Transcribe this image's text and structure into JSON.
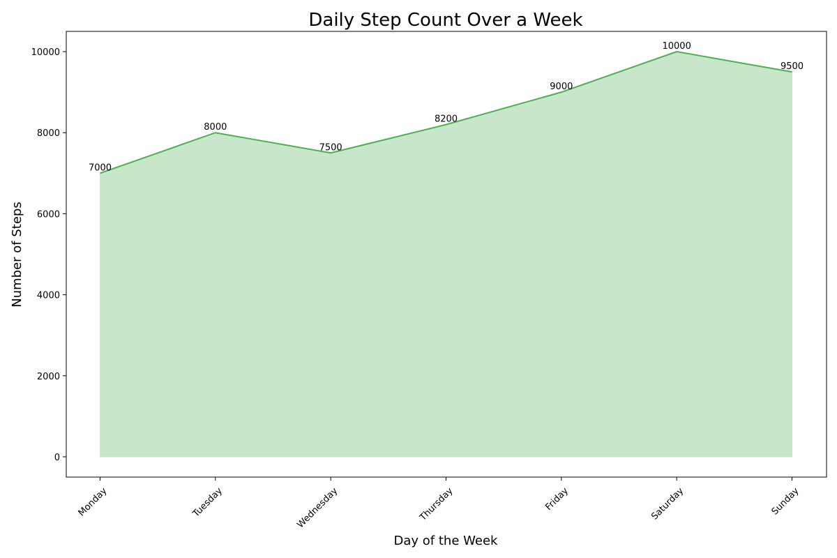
{
  "chart_data": {
    "type": "area",
    "title": "Daily Step Count Over a Week",
    "xlabel": "Day of the Week",
    "ylabel": "Number of Steps",
    "categories": [
      "Monday",
      "Tuesday",
      "Wednesday",
      "Thursday",
      "Friday",
      "Saturday",
      "Sunday"
    ],
    "values": [
      7000,
      8000,
      7500,
      8200,
      9000,
      10000,
      9500
    ],
    "yticks": [
      0,
      2000,
      4000,
      6000,
      8000,
      10000
    ],
    "ylim": [
      -500,
      10500
    ],
    "grid": false,
    "legend": "none",
    "colors": {
      "line": "#4caf50",
      "fill": "#c8e6c9"
    }
  }
}
